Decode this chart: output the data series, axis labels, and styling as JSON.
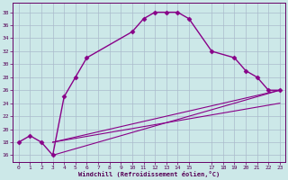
{
  "xlabel": "Windchill (Refroidissement éolien,°C)",
  "bg_color": "#cce8e8",
  "line_color": "#880088",
  "grid_color": "#aabbcc",
  "xlim": [
    -0.5,
    23.5
  ],
  "ylim": [
    15.0,
    39.5
  ],
  "xticks": [
    0,
    1,
    2,
    3,
    4,
    5,
    6,
    7,
    8,
    9,
    10,
    11,
    12,
    13,
    14,
    15,
    17,
    18,
    19,
    20,
    21,
    22,
    23
  ],
  "yticks": [
    16,
    18,
    20,
    22,
    24,
    26,
    28,
    30,
    32,
    34,
    36,
    38
  ],
  "lines": [
    {
      "x": [
        0,
        1,
        2,
        3,
        4,
        5,
        6,
        10,
        11,
        12,
        13,
        14,
        15,
        17,
        19,
        20,
        21,
        22,
        23
      ],
      "y": [
        18,
        19,
        18,
        16,
        25,
        28,
        31,
        35,
        37,
        38,
        38,
        38,
        37,
        32,
        31,
        29,
        28,
        26,
        26
      ],
      "marker": "D",
      "markersize": 2.5,
      "linewidth": 1.0
    },
    {
      "x": [
        3,
        23
      ],
      "y": [
        16,
        26
      ],
      "marker": null,
      "markersize": 0,
      "linewidth": 0.8
    },
    {
      "x": [
        3,
        23
      ],
      "y": [
        18,
        26
      ],
      "marker": null,
      "markersize": 0,
      "linewidth": 0.8
    },
    {
      "x": [
        3,
        23
      ],
      "y": [
        18,
        24
      ],
      "marker": null,
      "markersize": 0,
      "linewidth": 0.8
    }
  ]
}
